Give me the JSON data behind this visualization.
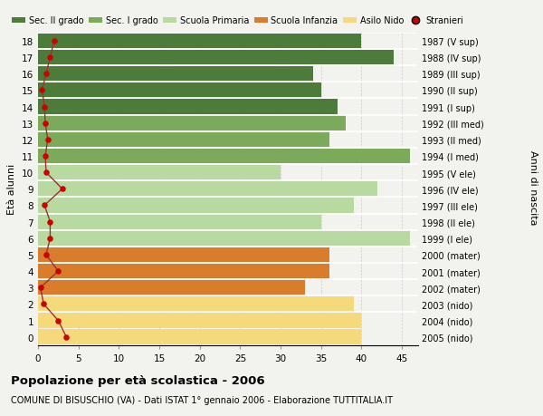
{
  "ages": [
    18,
    17,
    16,
    15,
    14,
    13,
    12,
    11,
    10,
    9,
    8,
    7,
    6,
    5,
    4,
    3,
    2,
    1,
    0
  ],
  "labels_right": [
    "1987 (V sup)",
    "1988 (IV sup)",
    "1989 (III sup)",
    "1990 (II sup)",
    "1991 (I sup)",
    "1992 (III med)",
    "1993 (II med)",
    "1994 (I med)",
    "1995 (V ele)",
    "1996 (IV ele)",
    "1997 (III ele)",
    "1998 (II ele)",
    "1999 (I ele)",
    "2000 (mater)",
    "2001 (mater)",
    "2002 (mater)",
    "2003 (nido)",
    "2004 (nido)",
    "2005 (nido)"
  ],
  "bar_values": [
    40,
    44,
    34,
    35,
    37,
    38,
    36,
    46,
    30,
    42,
    39,
    35,
    46,
    36,
    36,
    33,
    39,
    40,
    40
  ],
  "bar_colors": [
    "#4d7c3a",
    "#4d7c3a",
    "#4d7c3a",
    "#4d7c3a",
    "#4d7c3a",
    "#7aaa5a",
    "#7aaa5a",
    "#7aaa5a",
    "#b8d9a0",
    "#b8d9a0",
    "#b8d9a0",
    "#b8d9a0",
    "#b8d9a0",
    "#d97c2b",
    "#d97c2b",
    "#d97c2b",
    "#f5d97a",
    "#f5d97a",
    "#f5d97a"
  ],
  "stranieri_values": [
    2,
    1.5,
    1.0,
    0.5,
    0.8,
    0.9,
    1.2,
    0.9,
    1.0,
    3.0,
    0.8,
    1.5,
    1.5,
    1.0,
    2.5,
    0.3,
    0.7,
    2.5,
    3.5
  ],
  "legend_labels": [
    "Sec. II grado",
    "Sec. I grado",
    "Scuola Primaria",
    "Scuola Infanzia",
    "Asilo Nido",
    "Stranieri"
  ],
  "legend_colors": [
    "#4d7c3a",
    "#7aaa5a",
    "#b8d9a0",
    "#d97c2b",
    "#f5d97a",
    "#cc0000"
  ],
  "ylabel": "Età alunni",
  "xlabel_right": "Anni di nascita",
  "title": "Popolazione per età scolastica - 2006",
  "subtitle": "COMUNE DI BISUSCHIO (VA) - Dati ISTAT 1° gennaio 2006 - Elaborazione TUTTITALIA.IT",
  "xlim": [
    0,
    47
  ],
  "xticks": [
    0,
    5,
    10,
    15,
    20,
    25,
    30,
    35,
    40,
    45
  ],
  "bg_color": "#f2f2ee",
  "bar_height": 0.92,
  "stranieri_line_color": "#993333",
  "stranieri_dot_color": "#cc0000"
}
